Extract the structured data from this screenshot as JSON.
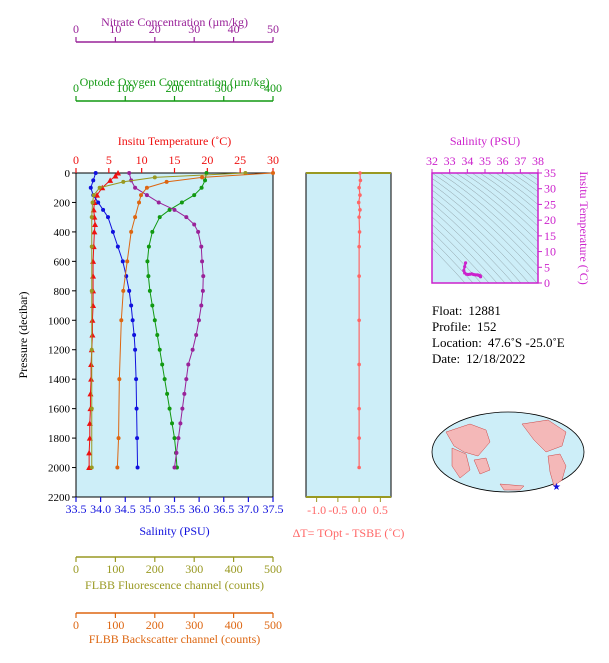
{
  "info": {
    "float_label": "Float:",
    "float_value": "12881",
    "profile_label": "Profile:",
    "profile_value": "152",
    "location_label": "Location:",
    "location_value": "47.6˚S  -25.0˚E",
    "date_label": "Date:",
    "date_value": "12/18/2022"
  },
  "colors": {
    "plot_bg": "#cdeef8",
    "temperature": "#ee1111",
    "salinity": "#1010dd",
    "oxygen": "#119911",
    "nitrate": "#992299",
    "fluorescence": "#999922",
    "backscatter": "#dd6611",
    "delta": "#ff6666",
    "ts_axis": "#cc22cc"
  },
  "chart_data": [
    {
      "type": "line",
      "id": "main_profile",
      "ylabel": "Pressure (decibar)",
      "ylim": [
        2200,
        0
      ],
      "yticks": [
        "0",
        "200",
        "400",
        "600",
        "800",
        "1000",
        "1200",
        "1400",
        "1600",
        "1800",
        "2000",
        "2200"
      ],
      "axes": {
        "nitrate": {
          "label": "Nitrate Concentration (µm/kg)",
          "ticks": [
            "0",
            "10",
            "20",
            "30",
            "40",
            "50"
          ],
          "range": [
            0,
            50
          ]
        },
        "oxygen": {
          "label": "Optode Oxygen Concentration (µm/kg)",
          "ticks": [
            "0",
            "100",
            "200",
            "300",
            "400"
          ],
          "range": [
            0,
            400
          ]
        },
        "temperature": {
          "label": "Insitu Temperature (˚C)",
          "ticks": [
            "0",
            "5",
            "10",
            "15",
            "20",
            "25",
            "30"
          ],
          "range": [
            0,
            30
          ]
        },
        "salinity": {
          "label": "Salinity (PSU)",
          "ticks": [
            "33.5",
            "34.0",
            "34.5",
            "35.0",
            "35.5",
            "36.0",
            "36.5",
            "37.0",
            "37.5"
          ],
          "range": [
            33.5,
            37.5
          ]
        },
        "fluorescence": {
          "label": "FLBB Fluorescence channel (counts)",
          "ticks": [
            "0",
            "100",
            "200",
            "300",
            "400",
            "500"
          ],
          "range": [
            0,
            500
          ]
        },
        "backscatter": {
          "label": "FLBB Backscatter channel (counts)",
          "ticks": [
            "0",
            "100",
            "200",
            "300",
            "400",
            "500"
          ],
          "range": [
            0,
            500
          ]
        }
      },
      "series": [
        {
          "key": "temperature",
          "marker": "triangle",
          "points": [
            [
              6.4,
              0
            ],
            [
              6.0,
              20
            ],
            [
              5.2,
              50
            ],
            [
              4.0,
              100
            ],
            [
              3.2,
              150
            ],
            [
              2.8,
              200
            ],
            [
              2.7,
              250
            ],
            [
              2.8,
              300
            ],
            [
              2.9,
              350
            ],
            [
              2.8,
              400
            ],
            [
              2.7,
              500
            ],
            [
              2.6,
              600
            ],
            [
              2.6,
              700
            ],
            [
              2.6,
              800
            ],
            [
              2.6,
              900
            ],
            [
              2.5,
              1000
            ],
            [
              2.5,
              1100
            ],
            [
              2.4,
              1200
            ],
            [
              2.3,
              1300
            ],
            [
              2.3,
              1400
            ],
            [
              2.2,
              1500
            ],
            [
              2.2,
              1600
            ],
            [
              2.1,
              1700
            ],
            [
              2.1,
              1800
            ],
            [
              2.0,
              1900
            ],
            [
              2.0,
              2000
            ]
          ]
        },
        {
          "key": "salinity",
          "marker": "circle",
          "points": [
            [
              33.9,
              0
            ],
            [
              33.85,
              50
            ],
            [
              33.8,
              100
            ],
            [
              33.85,
              150
            ],
            [
              33.95,
              200
            ],
            [
              34.05,
              250
            ],
            [
              34.15,
              300
            ],
            [
              34.25,
              400
            ],
            [
              34.35,
              500
            ],
            [
              34.45,
              600
            ],
            [
              34.52,
              700
            ],
            [
              34.58,
              800
            ],
            [
              34.62,
              900
            ],
            [
              34.65,
              1000
            ],
            [
              34.68,
              1100
            ],
            [
              34.7,
              1200
            ],
            [
              34.72,
              1400
            ],
            [
              34.73,
              1600
            ],
            [
              34.74,
              1800
            ],
            [
              34.75,
              2000
            ]
          ]
        },
        {
          "key": "oxygen",
          "marker": "circle",
          "points": [
            [
              265,
              0
            ],
            [
              262,
              50
            ],
            [
              255,
              100
            ],
            [
              240,
              150
            ],
            [
              215,
              200
            ],
            [
              190,
              250
            ],
            [
              170,
              300
            ],
            [
              155,
              400
            ],
            [
              148,
              500
            ],
            [
              145,
              600
            ],
            [
              147,
              700
            ],
            [
              150,
              800
            ],
            [
              155,
              900
            ],
            [
              160,
              1000
            ],
            [
              165,
              1100
            ],
            [
              170,
              1200
            ],
            [
              175,
              1300
            ],
            [
              180,
              1400
            ],
            [
              185,
              1500
            ],
            [
              190,
              1600
            ],
            [
              195,
              1700
            ],
            [
              200,
              1800
            ],
            [
              203,
              1900
            ],
            [
              205,
              2000
            ]
          ]
        },
        {
          "key": "nitrate",
          "marker": "circle",
          "points": [
            [
              13.5,
              0
            ],
            [
              14,
              50
            ],
            [
              15,
              100
            ],
            [
              18,
              150
            ],
            [
              21,
              200
            ],
            [
              25,
              250
            ],
            [
              28,
              300
            ],
            [
              30,
              350
            ],
            [
              31,
              400
            ],
            [
              31.8,
              500
            ],
            [
              32,
              600
            ],
            [
              32.3,
              700
            ],
            [
              32.2,
              800
            ],
            [
              31.8,
              900
            ],
            [
              31.2,
              1000
            ],
            [
              30.5,
              1100
            ],
            [
              29.6,
              1200
            ],
            [
              28.5,
              1300
            ],
            [
              28,
              1400
            ],
            [
              27.5,
              1500
            ],
            [
              27,
              1600
            ],
            [
              26.5,
              1700
            ],
            [
              26,
              1800
            ],
            [
              25.5,
              1900
            ],
            [
              25,
              2000
            ]
          ]
        },
        {
          "key": "fluorescence",
          "marker": "circle",
          "points": [
            [
              430,
              0
            ],
            [
              200,
              30
            ],
            [
              120,
              60
            ],
            [
              60,
              100
            ],
            [
              45,
              150
            ],
            [
              42,
              200
            ],
            [
              40,
              300
            ],
            [
              40,
              500
            ],
            [
              40,
              800
            ],
            [
              40,
              1200
            ],
            [
              40,
              1600
            ],
            [
              40,
              2000
            ]
          ]
        },
        {
          "key": "backscatter",
          "marker": "circle",
          "points": [
            [
              500,
              0
            ],
            [
              320,
              30
            ],
            [
              230,
              60
            ],
            [
              180,
              100
            ],
            [
              165,
              150
            ],
            [
              160,
              200
            ],
            [
              150,
              300
            ],
            [
              140,
              400
            ],
            [
              130,
              600
            ],
            [
              120,
              800
            ],
            [
              115,
              1000
            ],
            [
              110,
              1400
            ],
            [
              108,
              1800
            ],
            [
              105,
              2000
            ]
          ]
        }
      ]
    },
    {
      "type": "line",
      "id": "delta_t",
      "xlabel": "ΔT= TOpt - TSBE (˚C)",
      "xticks": [
        "-1.0",
        "-0.5",
        "0.0",
        "0.5"
      ],
      "xlim": [
        -1.25,
        0.75
      ],
      "ylim": [
        2200,
        0
      ],
      "series": [
        {
          "key": "delta",
          "points": [
            [
              0.02,
              0
            ],
            [
              0.03,
              50
            ],
            [
              0.0,
              100
            ],
            [
              0.02,
              150
            ],
            [
              -0.01,
              200
            ],
            [
              0.02,
              250
            ],
            [
              0.0,
              300
            ],
            [
              0.01,
              400
            ],
            [
              0.0,
              500
            ],
            [
              0.0,
              700
            ],
            [
              0.0,
              1000
            ],
            [
              0.0,
              1300
            ],
            [
              0.0,
              1600
            ],
            [
              0.0,
              1800
            ],
            [
              0.0,
              2000
            ]
          ]
        }
      ]
    },
    {
      "type": "scatter",
      "id": "ts_diagram",
      "xlabel": "Salinity (PSU)",
      "ylabel": "Insitu Temperature (˚C)",
      "xticks": [
        "32",
        "33",
        "34",
        "35",
        "36",
        "37",
        "38"
      ],
      "yticks": [
        "0",
        "5",
        "10",
        "15",
        "20",
        "25",
        "30",
        "35"
      ],
      "xlim": [
        32,
        38
      ],
      "ylim": [
        0,
        35
      ],
      "series": [
        {
          "key": "ts",
          "points": [
            [
              33.9,
              6.4
            ],
            [
              33.85,
              5.2
            ],
            [
              33.8,
              4.0
            ],
            [
              33.85,
              3.2
            ],
            [
              33.95,
              2.8
            ],
            [
              34.05,
              2.7
            ],
            [
              34.15,
              2.8
            ],
            [
              34.25,
              2.9
            ],
            [
              34.35,
              2.7
            ],
            [
              34.45,
              2.6
            ],
            [
              34.55,
              2.6
            ],
            [
              34.62,
              2.5
            ],
            [
              34.68,
              2.4
            ],
            [
              34.72,
              2.3
            ],
            [
              34.74,
              2.1
            ],
            [
              34.75,
              2.0
            ]
          ]
        }
      ]
    }
  ]
}
